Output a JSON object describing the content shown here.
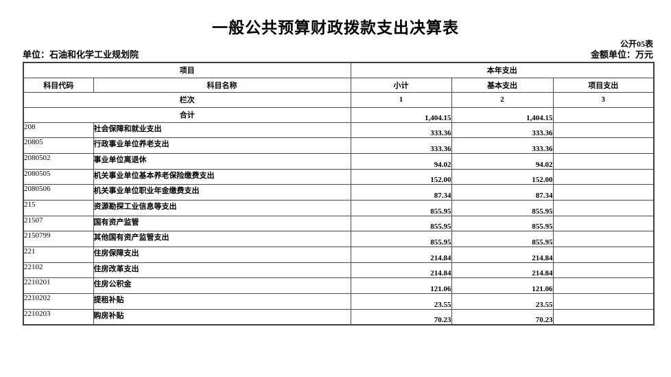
{
  "page": {
    "title": "一般公共预算财政拨款支出决算表",
    "form_code": "公开05表",
    "unit_label": "单位：石油和化学工业规划院",
    "amount_unit_label": "金额单位：万元"
  },
  "table": {
    "header": {
      "item_group": "项目",
      "year_expense_group": "本年支出",
      "col_code": "科目代码",
      "col_name": "科目名称",
      "col_subtotal": "小计",
      "col_basic": "基本支出",
      "col_project": "项目支出",
      "index_label": "栏次",
      "index_numbers": [
        "1",
        "2",
        "3"
      ]
    },
    "total_row": {
      "label": "合计",
      "subtotal": "1,404.15",
      "basic": "1,404.15",
      "project": ""
    },
    "rows": [
      {
        "code": "208",
        "name": "社会保障和就业支出",
        "subtotal": "333.36",
        "basic": "333.36",
        "project": ""
      },
      {
        "code": "20805",
        "name": "行政事业单位养老支出",
        "subtotal": "333.36",
        "basic": "333.36",
        "project": ""
      },
      {
        "code": "2080502",
        "name": "事业单位离退休",
        "subtotal": "94.02",
        "basic": "94.02",
        "project": ""
      },
      {
        "code": "2080505",
        "name": "机关事业单位基本养老保险缴费支出",
        "subtotal": "152.00",
        "basic": "152.00",
        "project": ""
      },
      {
        "code": "2080506",
        "name": "机关事业单位职业年金缴费支出",
        "subtotal": "87.34",
        "basic": "87.34",
        "project": ""
      },
      {
        "code": "215",
        "name": "资源勘探工业信息等支出",
        "subtotal": "855.95",
        "basic": "855.95",
        "project": ""
      },
      {
        "code": "21507",
        "name": "国有资产监管",
        "subtotal": "855.95",
        "basic": "855.95",
        "project": ""
      },
      {
        "code": "2150799",
        "name": "其他国有资产监管支出",
        "subtotal": "855.95",
        "basic": "855.95",
        "project": ""
      },
      {
        "code": "221",
        "name": "住房保障支出",
        "subtotal": "214.84",
        "basic": "214.84",
        "project": ""
      },
      {
        "code": "22102",
        "name": "住房改革支出",
        "subtotal": "214.84",
        "basic": "214.84",
        "project": ""
      },
      {
        "code": "2210201",
        "name": "住房公积金",
        "subtotal": "121.06",
        "basic": "121.06",
        "project": ""
      },
      {
        "code": "2210202",
        "name": "提租补贴",
        "subtotal": "23.55",
        "basic": "23.55",
        "project": ""
      },
      {
        "code": "2210203",
        "name": "购房补贴",
        "subtotal": "70.23",
        "basic": "70.23",
        "project": ""
      }
    ]
  }
}
